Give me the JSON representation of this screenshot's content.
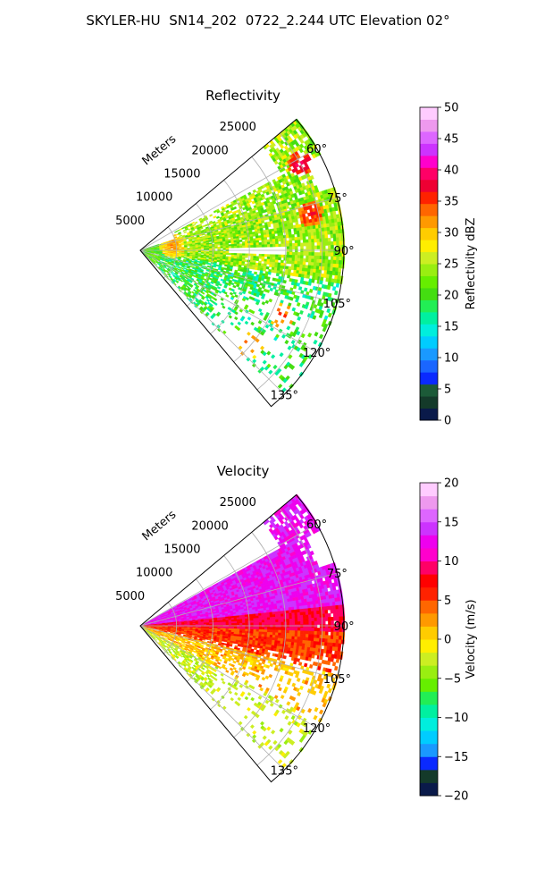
{
  "suptitle": "SKYLER-HU  SN14_202  0722_2.244 UTC Elevation 02°",
  "chart_data": [
    {
      "type": "heatmap",
      "projection": "polar-sector",
      "title": "Reflectivity",
      "radial_label": "Meters",
      "radial_ticks": [
        5000,
        10000,
        15000,
        20000,
        25000
      ],
      "radial_tick_labels": [
        "5000",
        "10000",
        "15000",
        "20000",
        "25000"
      ],
      "rlim": [
        0,
        28000
      ],
      "angle_range_deg": [
        50,
        140
      ],
      "angle_ticks": [
        60,
        75,
        90,
        105,
        120,
        135
      ],
      "angle_tick_labels": [
        "60°",
        "75°",
        "90°",
        "105°",
        "120°",
        "135°"
      ],
      "grid": true,
      "colorbar": {
        "label": "Reflectivity dBZ",
        "range": [
          0,
          50
        ],
        "ticks": [
          0,
          5,
          10,
          15,
          20,
          25,
          30,
          35,
          40,
          45,
          50
        ],
        "tick_labels": [
          "0",
          "5",
          "10",
          "15",
          "20",
          "25",
          "30",
          "35",
          "40",
          "45",
          "50"
        ],
        "colors": [
          "#0a1a4a",
          "#143a2a",
          "#1c5a38",
          "#0a2aff",
          "#1a66ff",
          "#1a99ff",
          "#00ccff",
          "#00eedd",
          "#00f0a0",
          "#22ee55",
          "#44dd11",
          "#66ee00",
          "#99ee11",
          "#ccee22",
          "#ffee00",
          "#ffcc00",
          "#ff9900",
          "#ff6600",
          "#ff2200",
          "#ee0033",
          "#ff0066",
          "#ff00cc",
          "#cc33ff",
          "#dd66ff",
          "#ee99ee",
          "#ffccff"
        ]
      },
      "field": {
        "dominant": [
          "20-30 dBZ yellow-green",
          "15-20 dBZ near-radar and south"
        ],
        "cores": [
          {
            "azimuth": 62,
            "range": 25000,
            "value": 40
          },
          {
            "azimuth": 78,
            "range": 24000,
            "value": 38
          },
          {
            "azimuth": 82,
            "range": 4500,
            "value": 33
          },
          {
            "azimuth": 115,
            "range": 21500,
            "value": 36
          },
          {
            "azimuth": 131,
            "range": 20000,
            "value": 35
          }
        ]
      }
    },
    {
      "type": "heatmap",
      "projection": "polar-sector",
      "title": "Velocity",
      "radial_label": "Meters",
      "radial_ticks": [
        5000,
        10000,
        15000,
        20000,
        25000
      ],
      "radial_tick_labels": [
        "5000",
        "10000",
        "15000",
        "20000",
        "25000"
      ],
      "rlim": [
        0,
        28000
      ],
      "angle_range_deg": [
        50,
        140
      ],
      "angle_ticks": [
        60,
        75,
        90,
        105,
        120,
        135
      ],
      "angle_tick_labels": [
        "60°",
        "75°",
        "90°",
        "105°",
        "120°",
        "135°"
      ],
      "grid": true,
      "colorbar": {
        "label": "Velocity (m/s)",
        "range": [
          -20,
          20
        ],
        "ticks": [
          -20,
          -15,
          -10,
          -5,
          0,
          5,
          10,
          15,
          20
        ],
        "tick_labels": [
          "−20",
          "−15",
          "−10",
          "−5",
          "0",
          "5",
          "10",
          "15",
          "20"
        ],
        "colors": [
          "#0a1a4a",
          "#143a2a",
          "#0a2aff",
          "#1a99ff",
          "#00ccff",
          "#00eedd",
          "#00f0a0",
          "#22ee55",
          "#66ee00",
          "#99ee11",
          "#ccee22",
          "#ffee00",
          "#ffcc00",
          "#ff9900",
          "#ff6600",
          "#ff2200",
          "#ff0000",
          "#ff0066",
          "#ff00cc",
          "#ee00ee",
          "#cc33ff",
          "#dd66ff",
          "#ee99ee",
          "#ffccff"
        ]
      },
      "field": {
        "north_of_90": "10 to 15 m/s (magenta)",
        "near_90": "5 to 10 m/s (red/orange)",
        "south_of_90": "0 to 5 m/s (yellow) grading to -5 m/s (green) at 120-135°"
      }
    }
  ]
}
